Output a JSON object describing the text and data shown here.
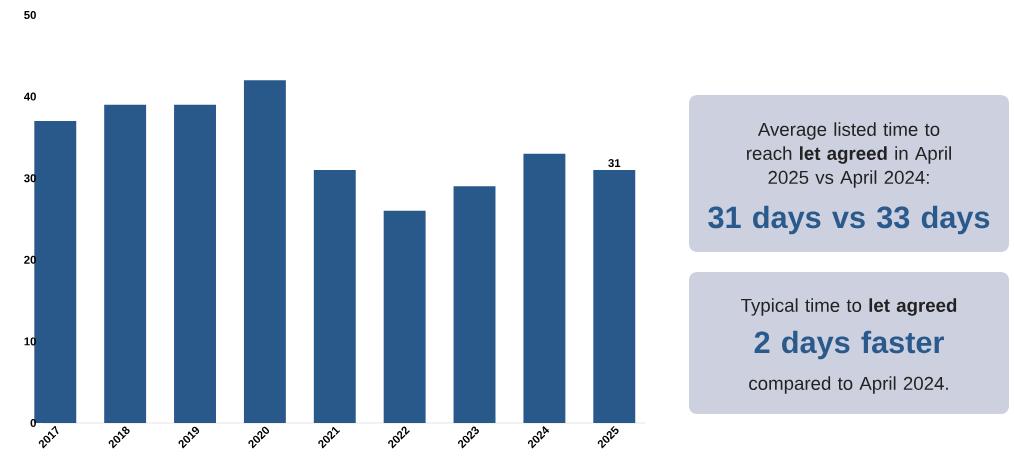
{
  "chart_data": {
    "type": "bar",
    "categories": [
      "2017",
      "2018",
      "2019",
      "2020",
      "2021",
      "2022",
      "2023",
      "2024",
      "2025"
    ],
    "values": [
      37,
      39,
      39,
      42,
      31,
      26,
      29,
      33,
      31
    ],
    "value_labels": [
      null,
      null,
      null,
      null,
      null,
      null,
      null,
      null,
      "31"
    ],
    "color": "#29598a",
    "ylim": [
      0,
      50
    ],
    "yticks": [
      0,
      10,
      20,
      30,
      40,
      50
    ],
    "annotations": [
      "Average listed time to reach **let agreed** in April 2025 vs April 2024:",
      "**31 days** vs **33 days**",
      "Typical time to **let agreed**",
      "2 days faster",
      "compared to April 2024."
    ]
  }
}
